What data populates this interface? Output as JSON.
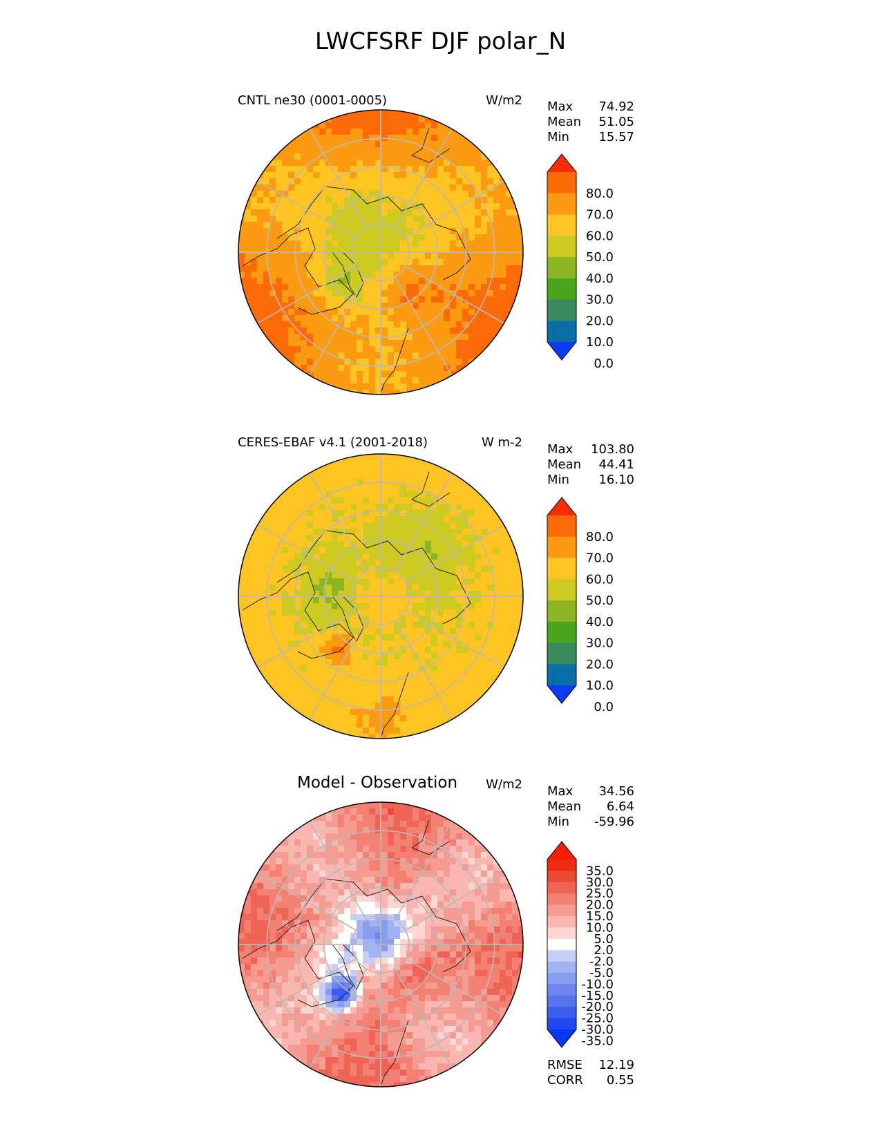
{
  "figure": {
    "title": "LWCFSRF DJF polar_N"
  },
  "chart_data": [
    {
      "type": "heatmap",
      "projection": "north polar stereographic",
      "title": "CNTL ne30 (0001-0005)",
      "units": "W/m2",
      "stats": [
        {
          "label": "Max",
          "value": "74.92"
        },
        {
          "label": "Mean",
          "value": "51.05"
        },
        {
          "label": "Min",
          "value": "15.57"
        }
      ],
      "colorbar": {
        "levels": [
          0,
          10,
          20,
          30,
          40,
          50,
          60,
          70,
          80
        ],
        "tick_labels": [
          "80.0",
          "70.0",
          "60.0",
          "50.0",
          "40.0",
          "30.0",
          "20.0",
          "10.0",
          "0.0"
        ],
        "extend": "both",
        "colors": [
          "#0a3cf5",
          "#0a6ea6",
          "#3a8a5e",
          "#4aa51d",
          "#8eb622",
          "#cdcb22",
          "#fdc422",
          "#fc9b12",
          "#fc6b08",
          "#fa2c08"
        ]
      },
      "field_summary": {
        "min": 15.57,
        "mean": 51.05,
        "max": 74.92
      }
    },
    {
      "type": "heatmap",
      "projection": "north polar stereographic",
      "title": "CERES-EBAF v4.1 (2001-2018)",
      "units": "W m-2",
      "stats": [
        {
          "label": "Max",
          "value": "103.80"
        },
        {
          "label": "Mean",
          "value": "44.41"
        },
        {
          "label": "Min",
          "value": "16.10"
        }
      ],
      "colorbar": {
        "levels": [
          0,
          10,
          20,
          30,
          40,
          50,
          60,
          70,
          80
        ],
        "tick_labels": [
          "80.0",
          "70.0",
          "60.0",
          "50.0",
          "40.0",
          "30.0",
          "20.0",
          "10.0",
          "0.0"
        ],
        "extend": "both",
        "colors": [
          "#0a3cf5",
          "#0a6ea6",
          "#3a8a5e",
          "#4aa51d",
          "#8eb622",
          "#cdcb22",
          "#fdc422",
          "#fc9b12",
          "#fc6b08",
          "#fa2c08"
        ]
      },
      "field_summary": {
        "min": 16.1,
        "mean": 44.41,
        "max": 103.8
      }
    },
    {
      "type": "heatmap",
      "projection": "north polar stereographic",
      "title": "Model - Observation",
      "units": "W/m2",
      "stats": [
        {
          "label": "Max",
          "value": "34.56"
        },
        {
          "label": "Mean",
          "value": "6.64"
        },
        {
          "label": "Min",
          "value": "-59.96"
        }
      ],
      "extra_stats": [
        {
          "label": "RMSE",
          "value": "12.19"
        },
        {
          "label": "CORR",
          "value": "0.55"
        }
      ],
      "colorbar": {
        "levels": [
          -35,
          -30,
          -25,
          -20,
          -15,
          -10,
          -5,
          -2,
          2,
          5,
          10,
          15,
          20,
          25,
          30,
          35
        ],
        "tick_labels": [
          "35.0",
          "30.0",
          "25.0",
          "20.0",
          "15.0",
          "10.0",
          "5.0",
          "2.0",
          "-2.0",
          "-5.0",
          "-10.0",
          "-15.0",
          "-20.0",
          "-25.0",
          "-30.0",
          "-35.0"
        ],
        "extend": "both",
        "colors": [
          "#0837f0",
          "#2248ee",
          "#3c5cef",
          "#5572ef",
          "#6e87f0",
          "#889cf1",
          "#a2b1f3",
          "#c4cef7",
          "#ffffff",
          "#fbd6d2",
          "#f8b8b1",
          "#f59c92",
          "#f28073",
          "#ef6454",
          "#ec4836",
          "#f02a10",
          "#f51e08"
        ]
      },
      "field_summary": {
        "min": -59.96,
        "mean": 6.64,
        "max": 34.56
      }
    }
  ]
}
